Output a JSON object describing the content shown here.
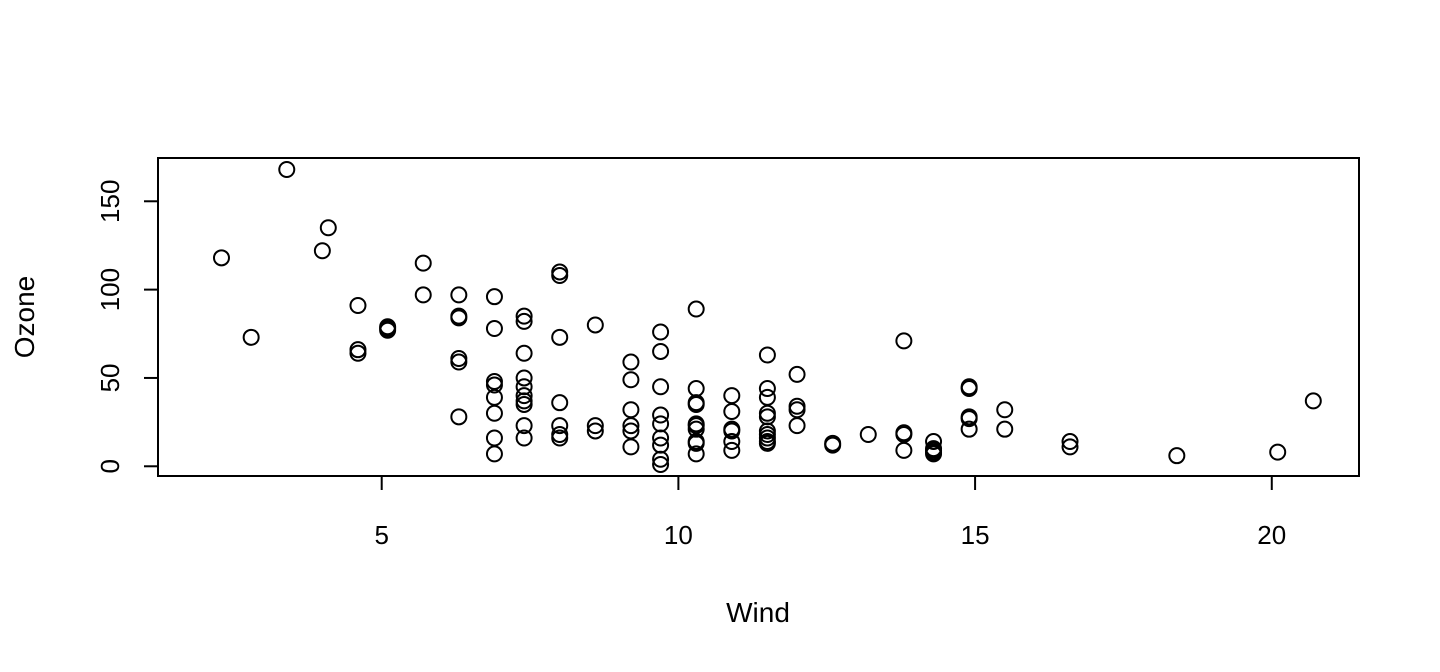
{
  "chart_data": {
    "type": "scatter",
    "title": "",
    "xlabel": "Wind",
    "ylabel": "Ozone",
    "xlim": [
      1.23,
      21.47
    ],
    "ylim": [
      -5.5,
      174.5
    ],
    "x_ticks": [
      5,
      10,
      15,
      20
    ],
    "y_ticks": [
      0,
      50,
      100,
      150
    ],
    "x_tick_labels": [
      "5",
      "10",
      "15",
      "20"
    ],
    "y_tick_labels": [
      "0",
      "50",
      "100",
      "150"
    ],
    "grid": false,
    "legend": "none",
    "marker": "open-circle",
    "colors": {
      "marker": "#000000",
      "background": "#ffffff",
      "axis": "#000000"
    },
    "points": [
      [
        2.3,
        118
      ],
      [
        2.8,
        73
      ],
      [
        3.4,
        168
      ],
      [
        4.0,
        122
      ],
      [
        4.1,
        135
      ],
      [
        4.6,
        91
      ],
      [
        4.6,
        66
      ],
      [
        4.6,
        64
      ],
      [
        5.1,
        79
      ],
      [
        5.1,
        78
      ],
      [
        5.1,
        77
      ],
      [
        5.7,
        115
      ],
      [
        5.7,
        97
      ],
      [
        6.3,
        97
      ],
      [
        6.3,
        85
      ],
      [
        6.3,
        84
      ],
      [
        6.3,
        61
      ],
      [
        6.3,
        59
      ],
      [
        6.3,
        28
      ],
      [
        6.9,
        96
      ],
      [
        6.9,
        78
      ],
      [
        6.9,
        48
      ],
      [
        6.9,
        46
      ],
      [
        6.9,
        39
      ],
      [
        6.9,
        30
      ],
      [
        6.9,
        16
      ],
      [
        6.9,
        7
      ],
      [
        7.4,
        85
      ],
      [
        7.4,
        82
      ],
      [
        7.4,
        64
      ],
      [
        7.4,
        50
      ],
      [
        7.4,
        45
      ],
      [
        7.4,
        40
      ],
      [
        7.4,
        37
      ],
      [
        7.4,
        35
      ],
      [
        7.4,
        23
      ],
      [
        7.4,
        16
      ],
      [
        8.0,
        110
      ],
      [
        8.0,
        108
      ],
      [
        8.0,
        73
      ],
      [
        8.0,
        36
      ],
      [
        8.0,
        23
      ],
      [
        8.0,
        18
      ],
      [
        8.0,
        16
      ],
      [
        8.6,
        80
      ],
      [
        8.6,
        23
      ],
      [
        8.6,
        20
      ],
      [
        9.2,
        59
      ],
      [
        9.2,
        49
      ],
      [
        9.2,
        32
      ],
      [
        9.2,
        23
      ],
      [
        9.2,
        20
      ],
      [
        9.2,
        11
      ],
      [
        9.7,
        76
      ],
      [
        9.7,
        65
      ],
      [
        9.7,
        45
      ],
      [
        9.7,
        29
      ],
      [
        9.7,
        24
      ],
      [
        9.7,
        16
      ],
      [
        9.7,
        12
      ],
      [
        9.7,
        4
      ],
      [
        9.7,
        1
      ],
      [
        10.3,
        89
      ],
      [
        10.3,
        44
      ],
      [
        10.3,
        36
      ],
      [
        10.3,
        35
      ],
      [
        10.3,
        24
      ],
      [
        10.3,
        23
      ],
      [
        10.3,
        21
      ],
      [
        10.3,
        14
      ],
      [
        10.3,
        13
      ],
      [
        10.3,
        7
      ],
      [
        10.9,
        40
      ],
      [
        10.9,
        31
      ],
      [
        10.9,
        21
      ],
      [
        10.9,
        20
      ],
      [
        10.9,
        14
      ],
      [
        10.9,
        9
      ],
      [
        11.5,
        63
      ],
      [
        11.5,
        44
      ],
      [
        11.5,
        39
      ],
      [
        11.5,
        30
      ],
      [
        11.5,
        28
      ],
      [
        11.5,
        20
      ],
      [
        11.5,
        18
      ],
      [
        11.5,
        16
      ],
      [
        11.5,
        14
      ],
      [
        11.5,
        13
      ],
      [
        12.0,
        52
      ],
      [
        12.0,
        34
      ],
      [
        12.0,
        32
      ],
      [
        12.0,
        23
      ],
      [
        12.6,
        13
      ],
      [
        12.6,
        12
      ],
      [
        13.2,
        18
      ],
      [
        13.8,
        71
      ],
      [
        13.8,
        19
      ],
      [
        13.8,
        18
      ],
      [
        13.8,
        9
      ],
      [
        14.3,
        14
      ],
      [
        14.3,
        10
      ],
      [
        14.3,
        9
      ],
      [
        14.3,
        8
      ],
      [
        14.3,
        7
      ],
      [
        14.9,
        45
      ],
      [
        14.9,
        44
      ],
      [
        14.9,
        28
      ],
      [
        14.9,
        27
      ],
      [
        14.9,
        21
      ],
      [
        15.5,
        32
      ],
      [
        15.5,
        21
      ],
      [
        16.6,
        14
      ],
      [
        16.6,
        11
      ],
      [
        18.4,
        6
      ],
      [
        20.1,
        8
      ],
      [
        20.7,
        37
      ]
    ]
  }
}
